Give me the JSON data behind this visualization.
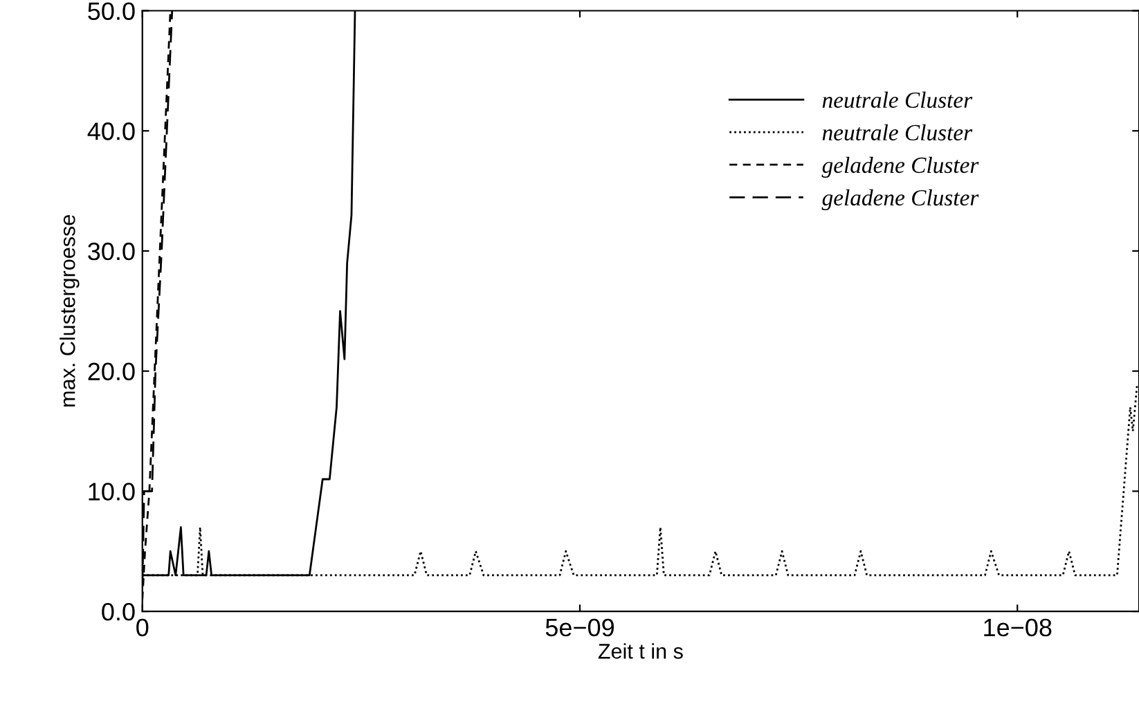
{
  "chart_data": {
    "type": "line",
    "xlabel": "Zeit t in s",
    "ylabel": "max. Clustergroesse",
    "xlim": [
      0,
      1.139e-08
    ],
    "ylim": [
      0,
      50
    ],
    "xticks": [
      {
        "value": 0,
        "label": "0"
      },
      {
        "value": 5e-09,
        "label": "5e−09"
      },
      {
        "value": 1e-08,
        "label": "1e−08"
      }
    ],
    "yticks": [
      {
        "value": 0,
        "label": "0.0"
      },
      {
        "value": 10,
        "label": "10.0"
      },
      {
        "value": 20,
        "label": "20.0"
      },
      {
        "value": 30,
        "label": "30.0"
      },
      {
        "value": 40,
        "label": "40.0"
      },
      {
        "value": 50,
        "label": "50.0"
      }
    ],
    "grid": false,
    "legend": "top right",
    "marker": "none",
    "series": [
      {
        "name": "neutrale Cluster",
        "color": "#000000",
        "line_style": "solid",
        "x": [
          0,
          3e-10,
          3.2e-10,
          3.8e-10,
          4.4e-10,
          4.7e-10,
          7.3e-10,
          7.6e-10,
          7.9e-10,
          1.91e-09,
          2.06e-09,
          2.14e-09,
          2.22e-09,
          2.26e-09,
          2.31e-09,
          2.34e-09,
          2.39e-09,
          2.43e-09
        ],
        "values": [
          3,
          3,
          5,
          3,
          7,
          3,
          3,
          5,
          3,
          3,
          11,
          11,
          17,
          25,
          21,
          29,
          33,
          50
        ]
      },
      {
        "name": "neutrale Cluster",
        "color": "#000000",
        "line_style": "dotted",
        "x": [
          0,
          6.3e-10,
          6.6e-10,
          6.9e-10,
          3.11e-09,
          3.18e-09,
          3.25e-09,
          3.74e-09,
          3.81e-09,
          3.9e-09,
          4.77e-09,
          4.84e-09,
          4.93e-09,
          5.88e-09,
          5.92e-09,
          5.96e-09,
          6.48e-09,
          6.55e-09,
          6.62e-09,
          7.24e-09,
          7.31e-09,
          7.38e-09,
          8.14e-09,
          8.21e-09,
          8.28e-09,
          9.63e-09,
          9.7e-09,
          9.79e-09,
          1.052e-08,
          1.059e-08,
          1.066e-08,
          1.114e-08,
          1.129e-08,
          1.132e-08,
          1.137e-08
        ],
        "values": [
          3,
          3,
          7,
          3,
          3,
          5,
          3,
          3,
          5,
          3,
          3,
          5,
          3,
          3,
          7,
          3,
          3,
          5,
          3,
          3,
          5,
          3,
          3,
          5,
          3,
          3,
          5,
          3,
          3,
          5,
          3,
          3,
          17,
          15,
          19
        ]
      },
      {
        "name": "geladene Cluster",
        "color": "#000000",
        "line_style": "dashed",
        "x": [
          0,
          3e-11,
          8e-11,
          1.4e-10,
          2e-10,
          2.6e-10,
          3.2e-10
        ],
        "values": [
          1,
          5,
          10,
          20,
          30,
          40,
          50
        ]
      },
      {
        "name": "geladene Cluster",
        "color": "#000000",
        "line_style": "dashed",
        "x": [
          0,
          2e-11,
          1.1e-10,
          1.5e-10,
          2.2e-10,
          2.8e-10,
          3.4e-10
        ],
        "values": [
          2,
          10,
          10,
          20,
          30,
          40,
          50
        ]
      }
    ]
  }
}
